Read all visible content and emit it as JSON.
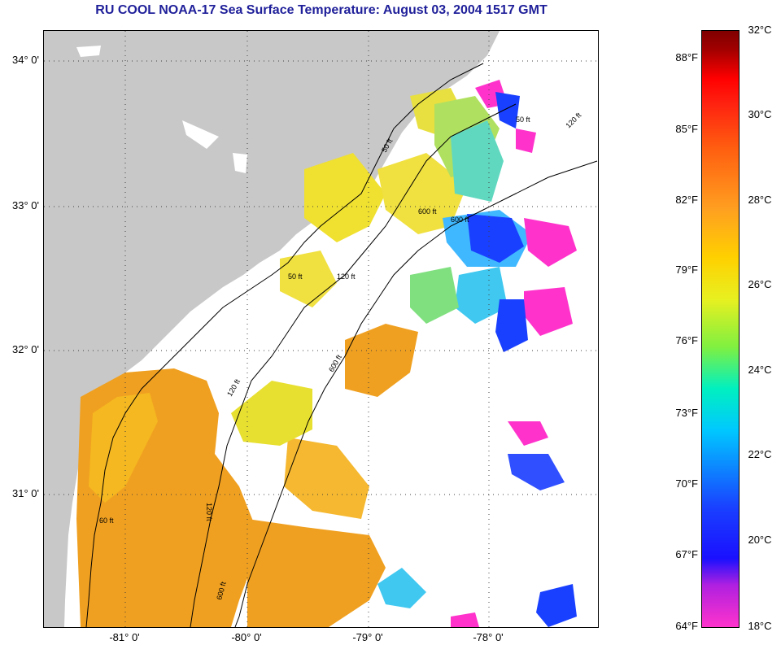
{
  "title": "RU COOL  NOAA-17  Sea Surface Temperature:  August 03, 2004 1517 GMT",
  "map": {
    "lat_labels": [
      "34° 0'",
      "33° 0'",
      "32° 0'",
      "31° 0'"
    ],
    "lon_labels": [
      "-81° 0'",
      "-80° 0'",
      "-79° 0'",
      "-78° 0'"
    ],
    "contour_labels": [
      "50 ft",
      "120 ft",
      "600 ft",
      "50 ft",
      "120 ft",
      "600 ft",
      "50 ft",
      "120 ft",
      "600 ft",
      "60 ft",
      "120 ft",
      "600 ft"
    ],
    "land_color": "#c8c8c8",
    "ocean_no_data_color": "#ffffff"
  },
  "colorbar": {
    "celsius_labels": [
      "32°C",
      "30°C",
      "28°C",
      "26°C",
      "24°C",
      "22°C",
      "20°C",
      "18°C"
    ],
    "fahrenheit_labels": [
      "88°F",
      "85°F",
      "82°F",
      "79°F",
      "76°F",
      "73°F",
      "70°F",
      "67°F",
      "64°F"
    ]
  }
}
